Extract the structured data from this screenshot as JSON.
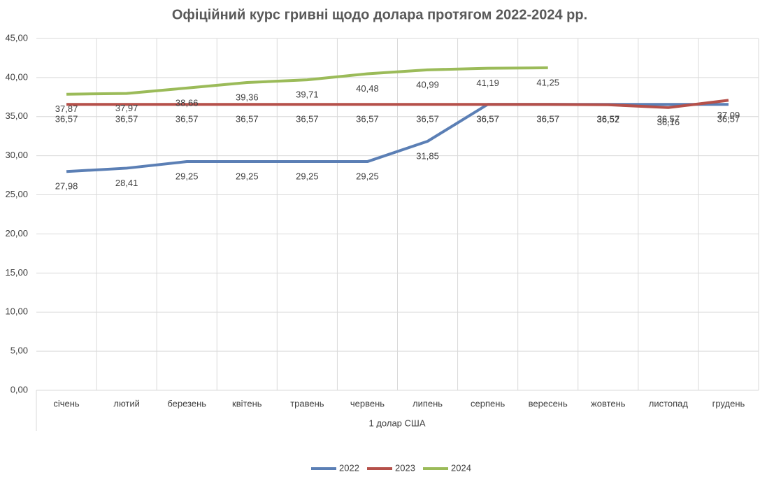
{
  "chart_data": {
    "type": "line",
    "title": "Офіційний курс гривні щодо долара протягом 2022-2024 рр.",
    "x_label": "1 долар США",
    "categories": [
      "січень",
      "лютий",
      "березень",
      "квітень",
      "травень",
      "червень",
      "липень",
      "серпень",
      "вересень",
      "жовтень",
      "листопад",
      "грудень"
    ],
    "series": [
      {
        "name": "2022",
        "color": "#5b7fb5",
        "values": [
          27.98,
          28.41,
          29.25,
          29.25,
          29.25,
          29.25,
          31.85,
          36.57,
          36.57,
          36.57,
          36.57,
          36.57
        ],
        "value_labels": [
          "27,98",
          "28,41",
          "29,25",
          "29,25",
          "29,25",
          "29,25",
          "31,85",
          "36,57",
          "36,57",
          "36,57",
          "36,57",
          "36,57"
        ]
      },
      {
        "name": "2023",
        "color": "#b5504a",
        "values": [
          36.57,
          36.57,
          36.57,
          36.57,
          36.57,
          36.57,
          36.57,
          36.57,
          36.57,
          36.52,
          36.16,
          37.09
        ],
        "value_labels": [
          "36,57",
          "36,57",
          "36,57",
          "36,57",
          "36,57",
          "36,57",
          "36,57",
          "36,57",
          "36,57",
          "36,52",
          "36,16",
          "37,09"
        ]
      },
      {
        "name": "2024",
        "color": "#9bbb59",
        "values": [
          37.87,
          37.97,
          38.66,
          39.36,
          39.71,
          40.48,
          40.99,
          41.19,
          41.25,
          null,
          null,
          null
        ],
        "value_labels": [
          "37,87",
          "37,97",
          "38,66",
          "39,36",
          "39,71",
          "40,48",
          "40,99",
          "41,19",
          "41,25",
          null,
          null,
          null
        ]
      }
    ],
    "ylim": [
      0,
      45
    ],
    "yticks": [
      {
        "value": 0,
        "label": "0,00"
      },
      {
        "value": 5,
        "label": "5,00"
      },
      {
        "value": 10,
        "label": "10,00"
      },
      {
        "value": 15,
        "label": "15,00"
      },
      {
        "value": 20,
        "label": "20,00"
      },
      {
        "value": 25,
        "label": "25,00"
      },
      {
        "value": 30,
        "label": "30,00"
      },
      {
        "value": 35,
        "label": "35,00"
      },
      {
        "value": 40,
        "label": "40,00"
      },
      {
        "value": 45,
        "label": "45,00"
      }
    ],
    "grid": true,
    "legend": "bottom"
  }
}
